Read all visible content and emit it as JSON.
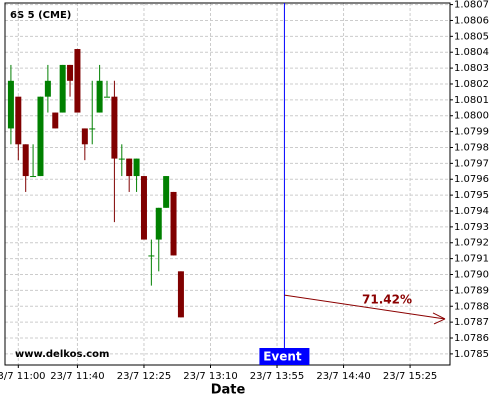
{
  "chart_data": {
    "type": "candlestick",
    "title": "6S 5 (CME)",
    "watermark": "www.delkos.com",
    "xlabel": "Date",
    "x": [
      "23/7 10:55",
      "23/7 11:00",
      "23/7 11:05",
      "23/7 11:10",
      "23/7 11:15",
      "23/7 11:20",
      "23/7 11:25",
      "23/7 11:30",
      "23/7 11:35",
      "23/7 11:40",
      "23/7 11:45",
      "23/7 11:50",
      "23/7 11:55",
      "23/7 12:00",
      "23/7 12:05",
      "23/7 12:10",
      "23/7 12:15",
      "23/7 12:20",
      "23/7 12:25",
      "23/7 12:30",
      "23/7 12:35",
      "23/7 12:40",
      "23/7 12:45",
      "23/7 12:50"
    ],
    "open": [
      1.07992,
      1.08012,
      1.07982,
      1.07962,
      1.07962,
      1.08012,
      1.08002,
      1.08002,
      1.08032,
      1.08042,
      1.07992,
      1.07992,
      1.08002,
      1.08012,
      1.08012,
      1.07973,
      1.07973,
      1.07962,
      1.07962,
      1.07912,
      1.07922,
      1.07942,
      1.07952,
      1.07902
    ],
    "high": [
      1.08032,
      1.08012,
      1.07982,
      1.07982,
      1.08012,
      1.08032,
      1.08002,
      1.08032,
      1.08032,
      1.08042,
      1.07992,
      1.08022,
      1.08032,
      1.08022,
      1.08022,
      1.07982,
      1.07973,
      1.07973,
      1.07962,
      1.07922,
      1.07942,
      1.07962,
      1.07952,
      1.07902
    ],
    "low": [
      1.07982,
      1.07972,
      1.07952,
      1.07962,
      1.07962,
      1.08002,
      1.07992,
      1.08002,
      1.08012,
      1.08002,
      1.07972,
      1.07982,
      1.08002,
      1.08012,
      1.07933,
      1.07962,
      1.07952,
      1.07952,
      1.07922,
      1.07893,
      1.07902,
      1.07942,
      1.07912,
      1.07873
    ],
    "close": [
      1.08022,
      1.07982,
      1.07962,
      1.07962,
      1.08012,
      1.08022,
      1.07992,
      1.08032,
      1.08022,
      1.08002,
      1.07982,
      1.07992,
      1.08022,
      1.08012,
      1.07973,
      1.07973,
      1.07962,
      1.07973,
      1.07922,
      1.07912,
      1.07942,
      1.07962,
      1.07912,
      1.07873
    ],
    "up_color": "#008000",
    "down_color": "#800000",
    "xlim": [
      "23/7 10:51",
      "23/7 15:52"
    ],
    "xticks": [
      "23/7 11:00",
      "23/7 11:40",
      "23/7 12:25",
      "23/7 13:10",
      "23/7 13:55",
      "23/7 14:40",
      "23/7 15:25"
    ],
    "ylim": [
      1.07843,
      1.08071
    ],
    "yticks": [
      1.0785,
      1.0786,
      1.0787,
      1.0788,
      1.0789,
      {
        "value": 1.079,
        "label": "1.0790"
      },
      1.0791,
      1.0792,
      1.0793,
      1.0794,
      1.0795,
      1.0796,
      1.0797,
      1.0798,
      1.0799,
      {
        "value": 1.08,
        "label": "1.0800"
      },
      1.0801,
      1.0802,
      1.0803,
      1.0804,
      1.0805,
      1.0806,
      1.0807
    ],
    "grid": true,
    "event": {
      "x": "23/7 14:00",
      "label": "Event",
      "color": "#0000ff"
    },
    "forecast": {
      "label": "71.42%",
      "color": "#8b0000",
      "start": 1.07887,
      "end": 1.07872
    }
  }
}
